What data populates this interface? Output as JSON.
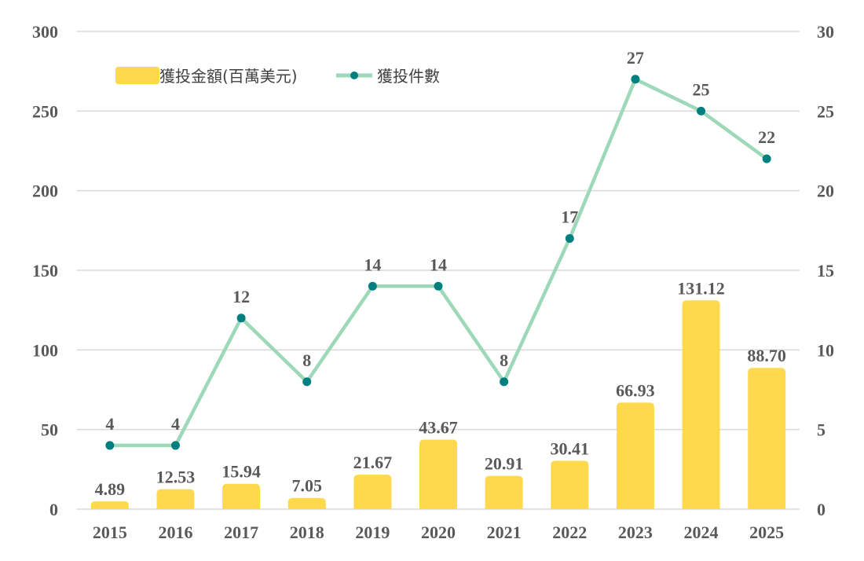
{
  "chart_data": {
    "type": "bar",
    "categories": [
      "2015",
      "2016",
      "2017",
      "2018",
      "2019",
      "2020",
      "2021",
      "2022",
      "2023",
      "2024",
      "2025"
    ],
    "series": [
      {
        "name": "獲投金額(百萬美元)",
        "type": "bar",
        "axis": "left",
        "color": "#ffd94d",
        "values": [
          4.89,
          12.53,
          15.94,
          7.05,
          21.67,
          43.67,
          20.91,
          30.41,
          66.93,
          131.12,
          88.7
        ],
        "labels": [
          "4.89",
          "12.53",
          "15.94",
          "7.05",
          "21.67",
          "43.67",
          "20.91",
          "30.41",
          "66.93",
          "131.12",
          "88.70"
        ]
      },
      {
        "name": "獲投件數",
        "type": "line",
        "axis": "right",
        "color": "#9dd9b8",
        "marker_color": "#007f7f",
        "values": [
          4,
          4,
          12,
          8,
          14,
          14,
          8,
          17,
          27,
          25,
          22
        ],
        "labels": [
          "4",
          "4",
          "12",
          "8",
          "14",
          "14",
          "8",
          "17",
          "27",
          "25",
          "22"
        ]
      }
    ],
    "left_axis": {
      "ylim": [
        0,
        300
      ],
      "ticks": [
        "0",
        "50",
        "100",
        "150",
        "200",
        "250",
        "300"
      ]
    },
    "right_axis": {
      "ylim": [
        0,
        30
      ],
      "ticks": [
        "0",
        "5",
        "10",
        "15",
        "20",
        "25",
        "30"
      ]
    },
    "grid": true,
    "legend_position": "top-left"
  }
}
